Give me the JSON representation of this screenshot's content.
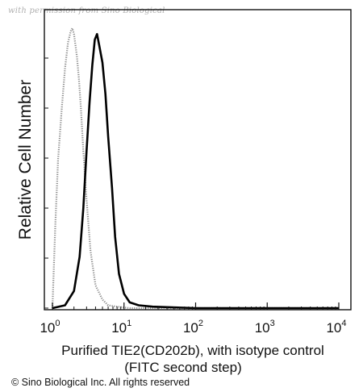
{
  "watermark": "with permission from Sino Biological",
  "copyright": "© Sino Biological Inc. All rights reserved",
  "chart_data": {
    "type": "line",
    "title": "",
    "xlabel_lines": [
      "Purified TIE2(CD202b), with isotype control",
      "(FITC second step)"
    ],
    "ylabel": "Relative Cell Number",
    "x_scale": "log",
    "xlim": [
      1,
      10000
    ],
    "ylim": [
      0,
      100
    ],
    "x_ticks": [
      {
        "base": "10",
        "exp": "0",
        "value": 1
      },
      {
        "base": "10",
        "exp": "1",
        "value": 10
      },
      {
        "base": "10",
        "exp": "2",
        "value": 100
      },
      {
        "base": "10",
        "exp": "3",
        "value": 1000
      },
      {
        "base": "10",
        "exp": "4",
        "value": 10000
      }
    ],
    "grid": false,
    "legend": "none",
    "series": [
      {
        "style": "dotted-gray",
        "color": "#8a8a8a",
        "x": [
          1.0,
          1.1,
          1.2,
          1.35,
          1.5,
          1.65,
          1.8,
          1.9,
          2.0,
          2.1,
          2.2,
          2.35,
          2.5,
          2.7,
          3.0,
          3.4,
          4.0,
          5.0,
          6.0,
          8.0,
          12.0,
          20.0,
          100.0,
          1000.0,
          10000.0
        ],
        "y": [
          0,
          30,
          52,
          70,
          84,
          93,
          97,
          98,
          96,
          92,
          88,
          80,
          70,
          55,
          38,
          20,
          8,
          3,
          1,
          0.5,
          0,
          0,
          0,
          0,
          0
        ]
      },
      {
        "style": "solid-black",
        "color": "#000000",
        "x": [
          1.0,
          1.5,
          2.0,
          2.4,
          2.7,
          3.0,
          3.3,
          3.6,
          3.9,
          4.2,
          4.5,
          5.0,
          5.5,
          6.0,
          6.8,
          7.5,
          8.5,
          10.0,
          12.0,
          16.0,
          25.0,
          100.0,
          1000.0,
          10000.0
        ],
        "y": [
          0,
          1,
          6,
          18,
          35,
          55,
          72,
          85,
          94,
          96,
          92,
          86,
          75,
          60,
          42,
          25,
          12,
          5,
          2,
          1,
          0.5,
          0,
          0,
          0
        ]
      }
    ]
  }
}
